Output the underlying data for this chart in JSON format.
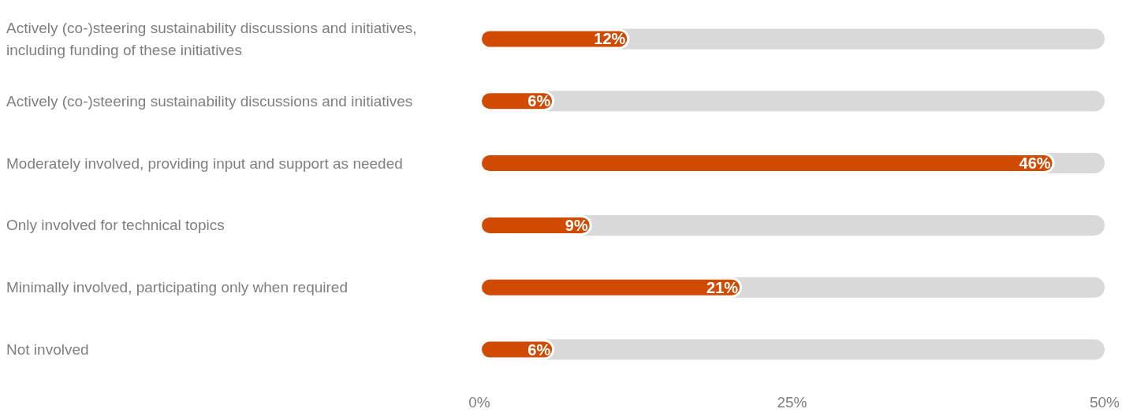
{
  "chart_data": {
    "type": "bar",
    "orientation": "horizontal",
    "categories": [
      "Actively (co-)steering sustainability discussions and initiatives, including funding of these initiatives",
      "Actively (co-)steering sustainability discussions and initiatives",
      "Moderately involved, providing input and support as needed",
      "Only involved for technical topics",
      "Minimally involved, participating only when required",
      "Not involved"
    ],
    "values": [
      12,
      6,
      46,
      9,
      21,
      6
    ],
    "value_labels": [
      "12%",
      "6%",
      "46%",
      "9%",
      "21%",
      "6%"
    ],
    "color": "#d04a02",
    "xlim": [
      0,
      50
    ],
    "xticks": [
      {
        "value": 0,
        "label": "0%"
      },
      {
        "value": 25,
        "label": "25%"
      },
      {
        "value": 50,
        "label": "50%"
      }
    ]
  }
}
